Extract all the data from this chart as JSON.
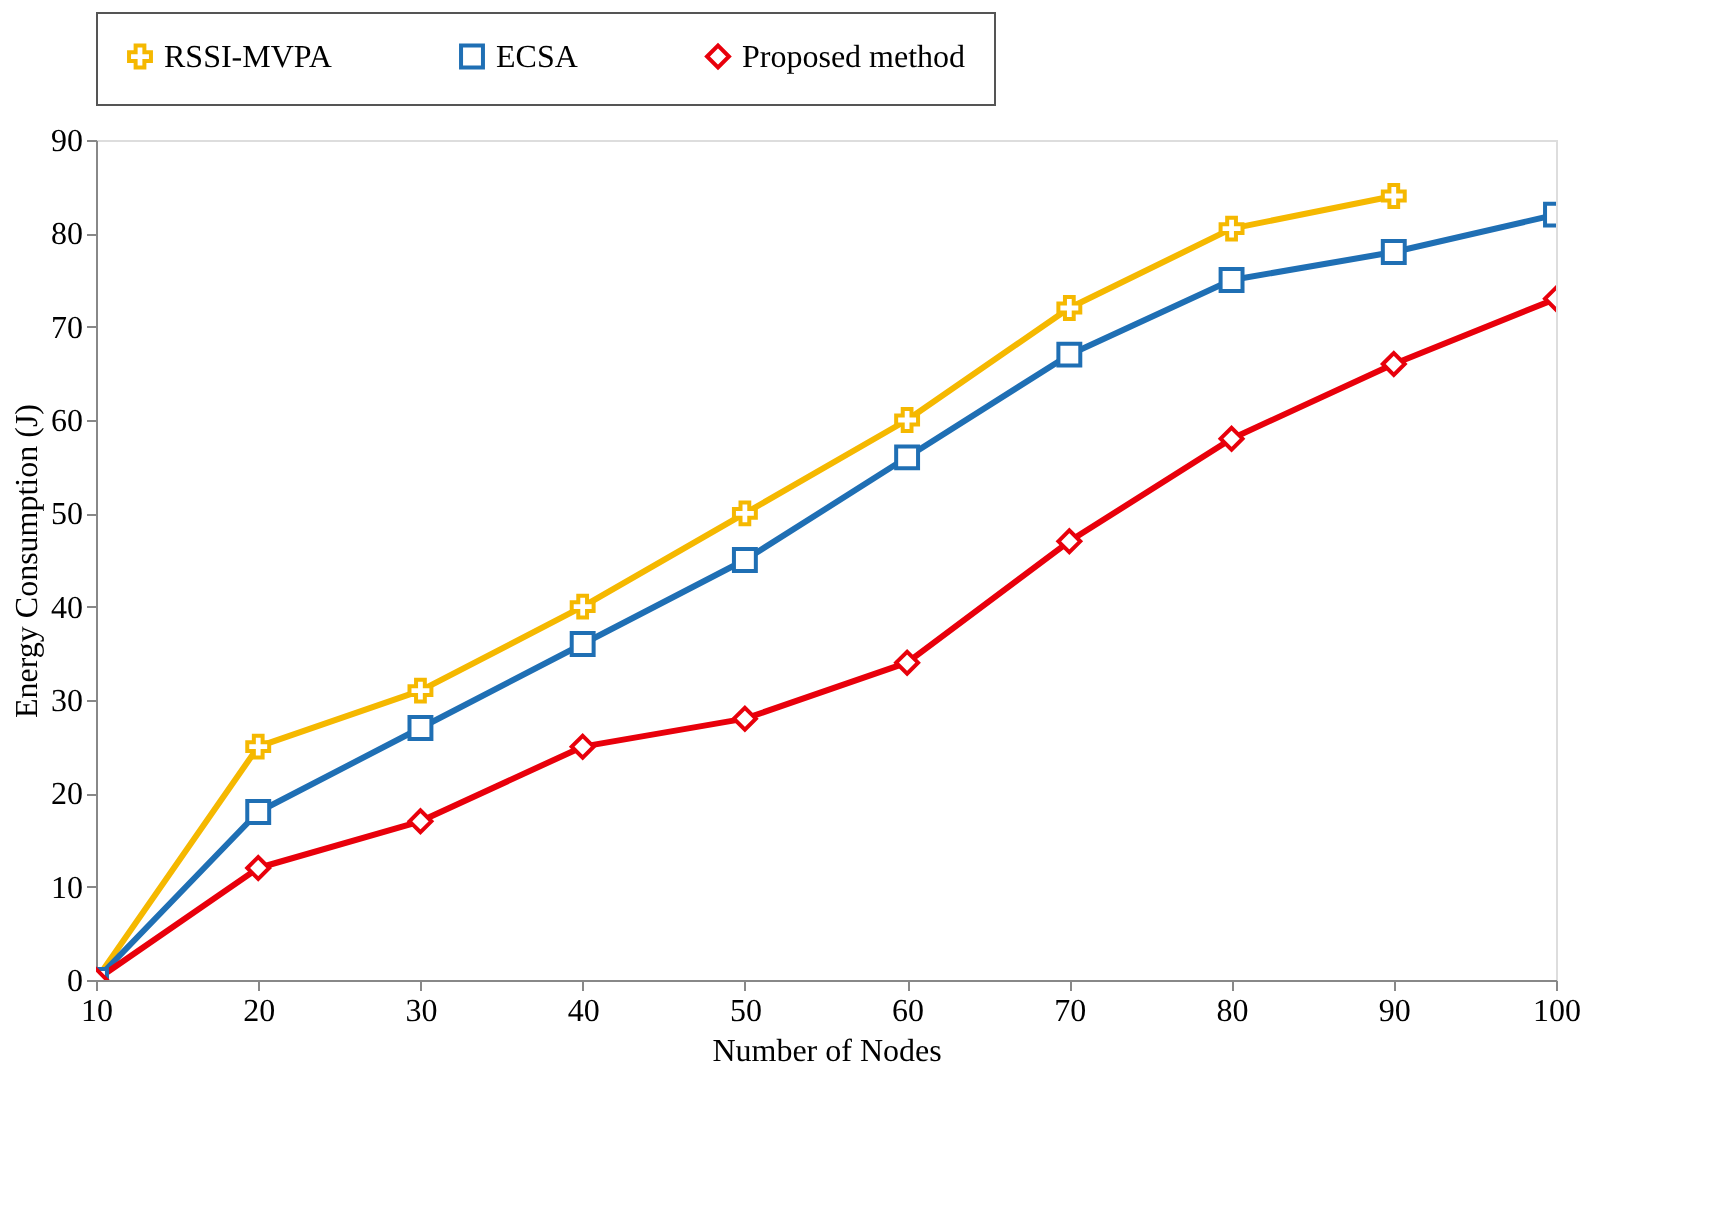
{
  "chart_data": {
    "type": "line",
    "xlabel": "Number of Nodes",
    "ylabel": "Energy Consumption (J)",
    "x": [
      10,
      20,
      30,
      40,
      50,
      60,
      70,
      80,
      90,
      100
    ],
    "xlim": [
      10,
      100
    ],
    "xticks": [
      10,
      20,
      30,
      40,
      50,
      60,
      70,
      80,
      90,
      100
    ],
    "ylim": [
      0,
      90
    ],
    "yticks": [
      0,
      10,
      20,
      30,
      40,
      50,
      60,
      70,
      80,
      90
    ],
    "grid": false,
    "legend": "top",
    "line_style": "solid",
    "series": [
      {
        "name": "RSSI-MVPA",
        "color": "#f5b800",
        "marker": "cross",
        "values": [
          0,
          25,
          31,
          40,
          50,
          60,
          72,
          80.5,
          84,
          null
        ]
      },
      {
        "name": "ECSA",
        "color": "#1f6fb4",
        "marker": "square",
        "values": [
          0,
          18,
          27,
          36,
          45,
          56,
          67,
          75,
          78,
          82
        ]
      },
      {
        "name": "Proposed method",
        "color": "#e8000b",
        "marker": "diamond",
        "values": [
          0,
          12,
          17,
          25,
          28,
          34,
          47,
          58,
          66,
          73
        ]
      }
    ]
  }
}
